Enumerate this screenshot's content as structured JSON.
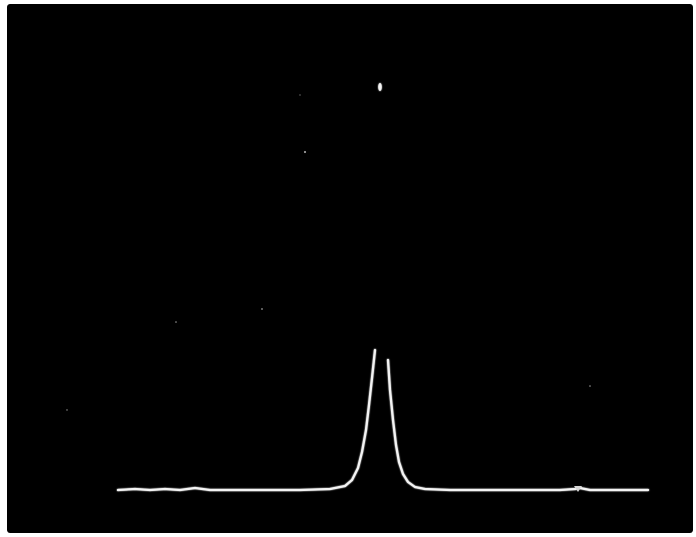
{
  "image": {
    "background_color": "#000000",
    "frame_color": "#ffffff",
    "trace_color": "#f4f4f4"
  }
}
